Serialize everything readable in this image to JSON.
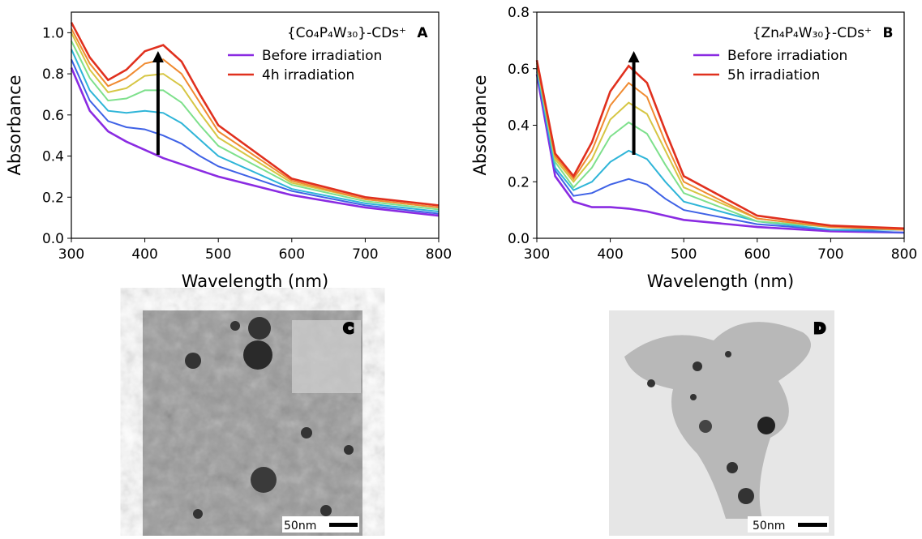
{
  "chart_data": [
    {
      "type": "line",
      "panel_label": "A",
      "legend_title": "{Co₄P₄W₃₀}-CDs⁺",
      "x_label": "Wavelength (nm)",
      "y_label": "Absorbance",
      "xlim": [
        300,
        800
      ],
      "ylim": [
        0,
        1.1
      ],
      "xticks": [
        300,
        400,
        500,
        600,
        700,
        800
      ],
      "yticks": [
        {
          "value": 0,
          "label": "0.0"
        },
        0.2,
        0.4,
        0.6,
        0.8,
        {
          "value": 1,
          "label": "1.0"
        }
      ],
      "x": [
        300,
        325,
        350,
        375,
        400,
        425,
        450,
        475,
        500,
        600,
        700,
        800
      ],
      "series": [
        {
          "name": "Before irradiation",
          "color": "#8a2be2",
          "values": [
            0.83,
            0.62,
            0.52,
            0.47,
            0.43,
            0.39,
            0.36,
            0.33,
            0.3,
            0.21,
            0.15,
            0.11
          ]
        },
        {
          "color": "#3f62e6",
          "values": [
            0.87,
            0.67,
            0.57,
            0.54,
            0.53,
            0.5,
            0.46,
            0.4,
            0.35,
            0.23,
            0.16,
            0.12
          ]
        },
        {
          "color": "#2fb5d8",
          "values": [
            0.92,
            0.72,
            0.62,
            0.61,
            0.62,
            0.61,
            0.56,
            0.48,
            0.4,
            0.24,
            0.17,
            0.13
          ]
        },
        {
          "color": "#7ee08c",
          "values": [
            0.96,
            0.78,
            0.67,
            0.68,
            0.72,
            0.72,
            0.66,
            0.55,
            0.45,
            0.26,
            0.18,
            0.14
          ]
        },
        {
          "color": "#d6c644",
          "values": [
            1.0,
            0.82,
            0.71,
            0.73,
            0.79,
            0.8,
            0.74,
            0.61,
            0.49,
            0.27,
            0.19,
            0.15
          ]
        },
        {
          "color": "#f08a30",
          "values": [
            1.02,
            0.85,
            0.74,
            0.78,
            0.85,
            0.87,
            0.8,
            0.66,
            0.52,
            0.28,
            0.19,
            0.15
          ]
        },
        {
          "name": "4h irradiation",
          "color": "#e0301e",
          "values": [
            1.05,
            0.88,
            0.77,
            0.82,
            0.91,
            0.94,
            0.86,
            0.7,
            0.55,
            0.29,
            0.2,
            0.16
          ]
        }
      ]
    },
    {
      "type": "line",
      "panel_label": "B",
      "legend_title": "{Zn₄P₄W₃₀}-CDs⁺",
      "x_label": "Wavelength (nm)",
      "y_label": "Absorbance",
      "xlim": [
        300,
        800
      ],
      "ylim": [
        0,
        0.8
      ],
      "xticks": [
        300,
        400,
        500,
        600,
        700,
        800
      ],
      "yticks": [
        {
          "value": 0,
          "label": "0.0"
        },
        0.2,
        0.4,
        0.6,
        0.8
      ],
      "x": [
        300,
        325,
        350,
        375,
        400,
        425,
        450,
        475,
        500,
        600,
        700,
        800
      ],
      "series": [
        {
          "name": "Before irradiation",
          "color": "#8a2be2",
          "values": [
            0.58,
            0.22,
            0.13,
            0.11,
            0.11,
            0.105,
            0.095,
            0.08,
            0.065,
            0.04,
            0.025,
            0.02
          ]
        },
        {
          "color": "#3f62e6",
          "values": [
            0.59,
            0.24,
            0.15,
            0.16,
            0.19,
            0.21,
            0.19,
            0.14,
            0.1,
            0.05,
            0.03,
            0.02
          ]
        },
        {
          "color": "#2fb5d8",
          "values": [
            0.6,
            0.25,
            0.17,
            0.2,
            0.27,
            0.31,
            0.28,
            0.2,
            0.13,
            0.06,
            0.03,
            0.03
          ]
        },
        {
          "color": "#7ee08c",
          "values": [
            0.61,
            0.27,
            0.18,
            0.25,
            0.36,
            0.41,
            0.37,
            0.26,
            0.16,
            0.06,
            0.04,
            0.03
          ]
        },
        {
          "color": "#d6c644",
          "values": [
            0.62,
            0.28,
            0.2,
            0.28,
            0.42,
            0.48,
            0.44,
            0.31,
            0.18,
            0.07,
            0.04,
            0.03
          ]
        },
        {
          "color": "#f08a30",
          "values": [
            0.62,
            0.29,
            0.21,
            0.31,
            0.47,
            0.55,
            0.5,
            0.34,
            0.2,
            0.07,
            0.04,
            0.03
          ]
        },
        {
          "name": "5h irradiation",
          "color": "#e0301e",
          "values": [
            0.63,
            0.3,
            0.22,
            0.34,
            0.52,
            0.61,
            0.55,
            0.38,
            0.22,
            0.08,
            0.045,
            0.035
          ]
        }
      ]
    }
  ],
  "panels": [
    {
      "label": "C",
      "scale_bar": "50nm"
    },
    {
      "label": "D",
      "scale_bar": "50nm"
    }
  ]
}
